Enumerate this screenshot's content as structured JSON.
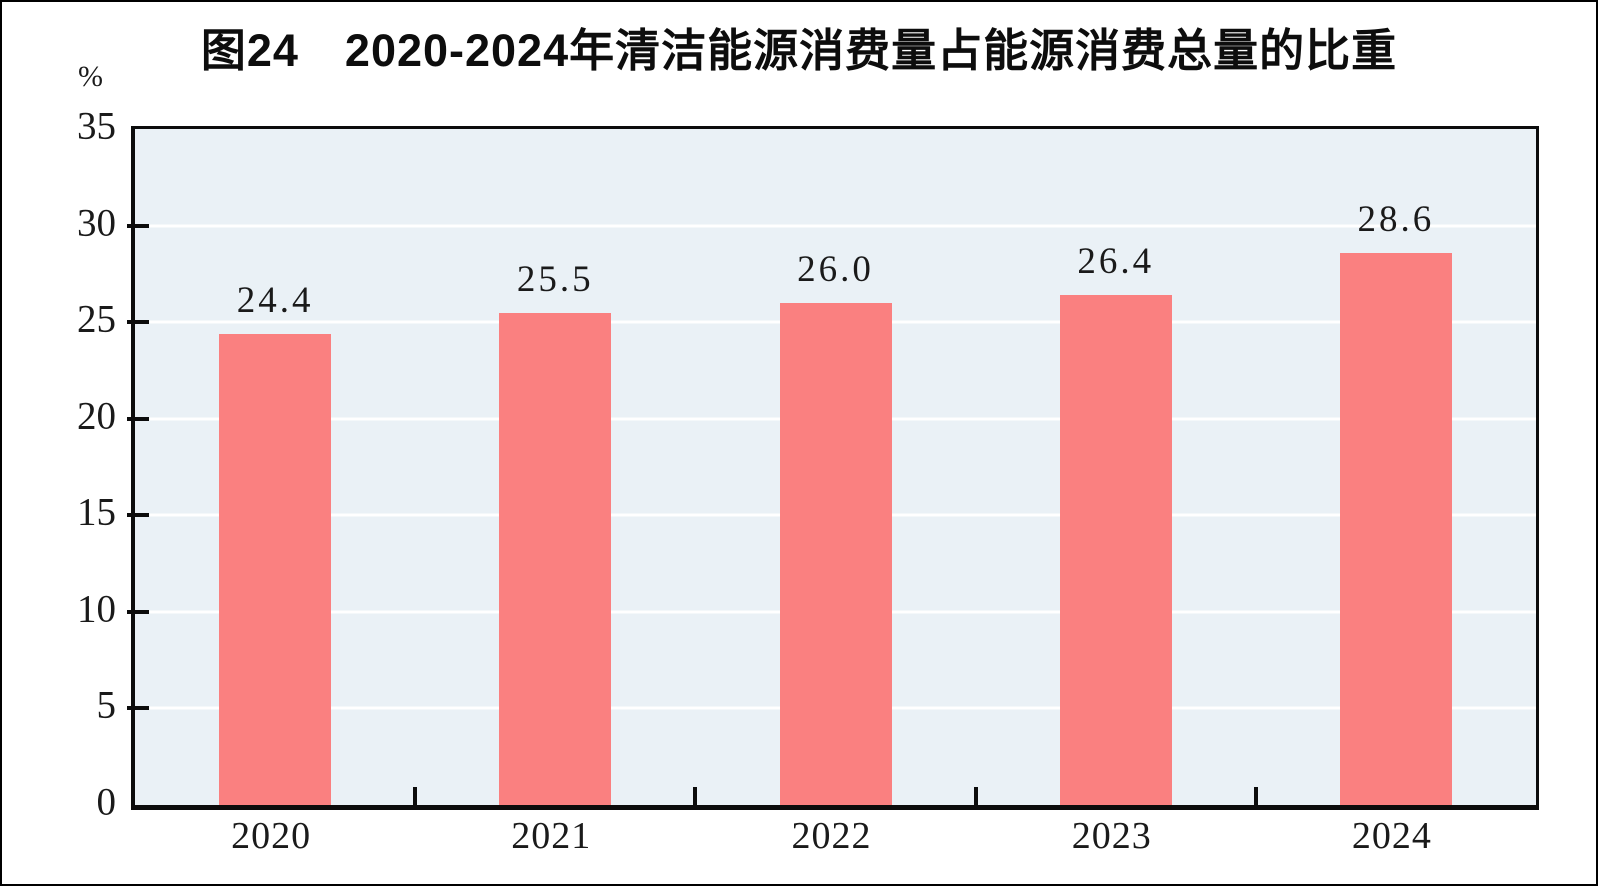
{
  "title": "图24　2020-2024年清洁能源消费量占能源消费总量的比重",
  "unit_label": "%",
  "colors": {
    "bar": "#FA8080",
    "plot_background": "#EAF1F6",
    "gridline": "#FFFFFF",
    "axis": "#0C0C0C",
    "text": "#1A1A1A"
  },
  "chart_data": {
    "type": "bar",
    "title": "图24　2020-2024年清洁能源消费量占能源消费总量的比重",
    "categories": [
      "2020",
      "2021",
      "2022",
      "2023",
      "2024"
    ],
    "values": [
      24.4,
      25.5,
      26.0,
      26.4,
      28.6
    ],
    "value_labels": [
      "24.4",
      "25.5",
      "26.0",
      "26.4",
      "28.6"
    ],
    "xlabel": "",
    "ylabel": "%",
    "ylim": [
      0,
      35
    ],
    "ytick_step": 5,
    "yticks": [
      0,
      5,
      10,
      15,
      20,
      25,
      30,
      35
    ],
    "grid": true,
    "gridlines_at": [
      5,
      10,
      15,
      20,
      25,
      30
    ],
    "legend": "none",
    "bar_color": "#FA8080",
    "plot_background": "#EAF1F6"
  }
}
